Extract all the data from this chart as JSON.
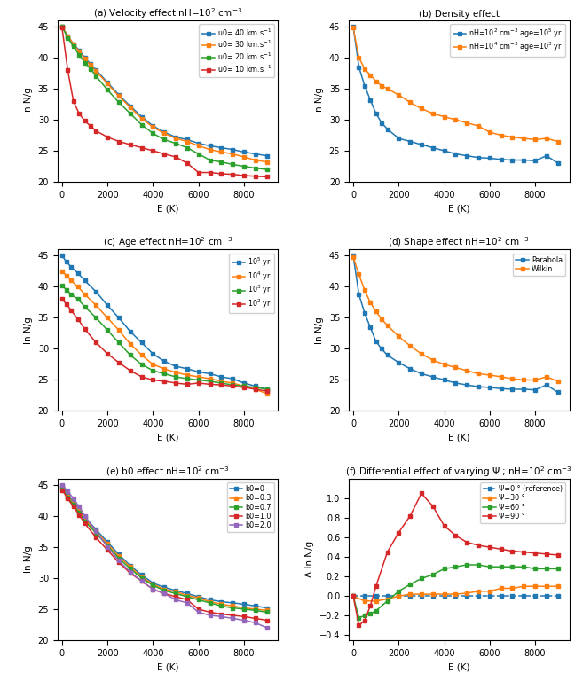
{
  "panel_a": {
    "title": "(a) Velocity effect nH=10$^2$ cm$^{-3}$",
    "xlabel": "E (K)",
    "ylabel": "ln N/g",
    "ylim": [
      20,
      46
    ],
    "xlim": [
      -200,
      9500
    ],
    "yticks": [
      20,
      25,
      30,
      35,
      40,
      45
    ],
    "xticks": [
      0,
      2000,
      4000,
      6000,
      8000
    ],
    "series": [
      {
        "label": "u0= 40 km.s$^{-1}$",
        "color": "#1f77b4",
        "x": [
          0,
          250,
          500,
          750,
          1000,
          1250,
          1500,
          2000,
          2500,
          3000,
          3500,
          4000,
          4500,
          5000,
          5500,
          6000,
          6500,
          7000,
          7500,
          8000,
          8500,
          9000
        ],
        "y": [
          45.0,
          43.5,
          42.2,
          41.2,
          40.0,
          39.0,
          38.0,
          36.0,
          34.0,
          32.2,
          30.5,
          29.0,
          28.0,
          27.2,
          26.8,
          26.2,
          25.8,
          25.5,
          25.2,
          24.8,
          24.5,
          24.2
        ]
      },
      {
        "label": "u0= 30 km.s$^{-1}$",
        "color": "#ff7f0e",
        "x": [
          0,
          250,
          500,
          750,
          1000,
          1250,
          1500,
          2000,
          2500,
          3000,
          3500,
          4000,
          4500,
          5000,
          5500,
          6000,
          6500,
          7000,
          7500,
          8000,
          8500,
          9000
        ],
        "y": [
          45.0,
          43.5,
          42.2,
          41.0,
          39.8,
          38.8,
          37.8,
          35.8,
          33.8,
          32.0,
          30.2,
          28.8,
          27.8,
          27.0,
          26.5,
          25.8,
          25.2,
          24.8,
          24.5,
          24.0,
          23.5,
          23.2
        ]
      },
      {
        "label": "u0= 20 km.s$^{-1}$",
        "color": "#2ca02c",
        "x": [
          0,
          250,
          500,
          750,
          1000,
          1250,
          1500,
          2000,
          2500,
          3000,
          3500,
          4000,
          4500,
          5000,
          5500,
          6000,
          6500,
          7000,
          7500,
          8000,
          8500,
          9000
        ],
        "y": [
          45.0,
          43.2,
          41.8,
          40.5,
          39.2,
          38.2,
          37.0,
          34.8,
          32.8,
          31.0,
          29.2,
          27.8,
          26.8,
          26.2,
          25.5,
          24.5,
          23.5,
          23.2,
          22.8,
          22.5,
          22.2,
          22.0
        ]
      },
      {
        "label": "u0= 10 km.s$^{-1}$",
        "color": "#d62728",
        "x": [
          0,
          250,
          500,
          750,
          1000,
          1250,
          1500,
          2000,
          2500,
          3000,
          3500,
          4000,
          4500,
          5000,
          5500,
          6000,
          6500,
          7000,
          7500,
          8000,
          8500,
          9000
        ],
        "y": [
          44.8,
          38.0,
          33.0,
          31.0,
          29.8,
          29.0,
          28.2,
          27.2,
          26.5,
          26.0,
          25.5,
          25.0,
          24.5,
          24.0,
          23.0,
          21.5,
          21.5,
          21.3,
          21.2,
          21.0,
          20.9,
          20.8
        ]
      }
    ]
  },
  "panel_b": {
    "title": "(b) Density effect",
    "xlabel": "E (K)",
    "ylabel": "ln N/g",
    "ylim": [
      20,
      46
    ],
    "xlim": [
      -200,
      9500
    ],
    "yticks": [
      20,
      25,
      30,
      35,
      40,
      45
    ],
    "xticks": [
      0,
      2000,
      4000,
      6000,
      8000
    ],
    "series": [
      {
        "label": "nH=10$^2$ cm$^{-3}$ age=10$^5$ yr",
        "color": "#1f77b4",
        "x": [
          0,
          250,
          500,
          750,
          1000,
          1250,
          1500,
          2000,
          2500,
          3000,
          3500,
          4000,
          4500,
          5000,
          5500,
          6000,
          6500,
          7000,
          7500,
          8000,
          8500,
          9000
        ],
        "y": [
          45.0,
          38.5,
          35.5,
          33.2,
          31.0,
          29.5,
          28.5,
          27.0,
          26.5,
          26.0,
          25.5,
          25.0,
          24.5,
          24.2,
          23.9,
          23.8,
          23.6,
          23.5,
          23.5,
          23.4,
          24.2,
          23.0
        ]
      },
      {
        "label": "nH=10$^4$ cm$^{-3}$ age=10$^3$ yr",
        "color": "#ff7f0e",
        "x": [
          0,
          250,
          500,
          750,
          1000,
          1250,
          1500,
          2000,
          2500,
          3000,
          3500,
          4000,
          4500,
          5000,
          5500,
          6000,
          6500,
          7000,
          7500,
          8000,
          8500,
          9000
        ],
        "y": [
          44.8,
          40.0,
          38.2,
          37.2,
          36.2,
          35.5,
          35.0,
          34.0,
          32.8,
          31.8,
          31.0,
          30.5,
          30.0,
          29.5,
          29.0,
          28.0,
          27.5,
          27.2,
          27.0,
          26.8,
          27.0,
          26.5
        ]
      }
    ]
  },
  "panel_c": {
    "title": "(c) Age effect nH=10$^2$ cm$^{-3}$",
    "xlabel": "E (K)",
    "ylabel": "ln N/g",
    "ylim": [
      20,
      46
    ],
    "xlim": [
      -200,
      9500
    ],
    "yticks": [
      20,
      25,
      30,
      35,
      40,
      45
    ],
    "xticks": [
      0,
      2000,
      4000,
      6000,
      8000
    ],
    "series": [
      {
        "label": "10$^5$ yr",
        "color": "#1f77b4",
        "x": [
          0,
          200,
          400,
          700,
          1000,
          1500,
          2000,
          2500,
          3000,
          3500,
          4000,
          4500,
          5000,
          5500,
          6000,
          6500,
          7000,
          7500,
          8000,
          8500,
          9000
        ],
        "y": [
          45.0,
          44.0,
          43.2,
          42.2,
          41.0,
          39.2,
          37.0,
          35.0,
          32.8,
          31.0,
          29.2,
          28.0,
          27.2,
          26.8,
          26.3,
          26.0,
          25.5,
          25.2,
          24.5,
          24.0,
          23.5
        ]
      },
      {
        "label": "10$^4$ yr",
        "color": "#ff7f0e",
        "x": [
          0,
          200,
          400,
          700,
          1000,
          1500,
          2000,
          2500,
          3000,
          3500,
          4000,
          4500,
          5000,
          5500,
          6000,
          6500,
          7000,
          7500,
          8000,
          8500,
          9000
        ],
        "y": [
          42.5,
          41.8,
          41.0,
          40.0,
          38.8,
          37.0,
          35.0,
          33.0,
          30.8,
          29.0,
          27.5,
          26.8,
          26.2,
          25.8,
          25.5,
          25.2,
          24.8,
          24.5,
          24.0,
          23.5,
          22.8
        ]
      },
      {
        "label": "10$^3$ yr",
        "color": "#2ca02c",
        "x": [
          0,
          200,
          400,
          700,
          1000,
          1500,
          2000,
          2500,
          3000,
          3500,
          4000,
          4500,
          5000,
          5500,
          6000,
          6500,
          7000,
          7500,
          8000,
          8500,
          9000
        ],
        "y": [
          40.2,
          39.5,
          38.8,
          38.0,
          36.8,
          35.0,
          33.0,
          31.0,
          29.0,
          27.5,
          26.5,
          26.0,
          25.5,
          25.2,
          25.0,
          24.8,
          24.5,
          24.2,
          24.0,
          23.8,
          23.5
        ]
      },
      {
        "label": "10$^2$ yr",
        "color": "#d62728",
        "x": [
          0,
          200,
          400,
          700,
          1000,
          1500,
          2000,
          2500,
          3000,
          3500,
          4000,
          4500,
          5000,
          5500,
          6000,
          6500,
          7000,
          7500,
          8000,
          8500,
          9000
        ],
        "y": [
          38.0,
          37.2,
          36.2,
          34.8,
          33.2,
          31.0,
          29.2,
          27.8,
          26.5,
          25.5,
          25.0,
          24.8,
          24.5,
          24.3,
          24.5,
          24.3,
          24.2,
          24.0,
          23.8,
          23.5,
          23.2
        ]
      }
    ]
  },
  "panel_d": {
    "title": "(d) Shape effect nH=10$^2$ cm$^{-3}$",
    "xlabel": "E (K)",
    "ylabel": "ln N/g",
    "ylim": [
      20,
      46
    ],
    "xlim": [
      -200,
      9500
    ],
    "yticks": [
      20,
      25,
      30,
      35,
      40,
      45
    ],
    "xticks": [
      0,
      2000,
      4000,
      6000,
      8000
    ],
    "series": [
      {
        "label": "Parabola",
        "color": "#1f77b4",
        "x": [
          0,
          250,
          500,
          750,
          1000,
          1250,
          1500,
          2000,
          2500,
          3000,
          3500,
          4000,
          4500,
          5000,
          5500,
          6000,
          6500,
          7000,
          7500,
          8000,
          8500,
          9000
        ],
        "y": [
          45.0,
          38.8,
          35.8,
          33.5,
          31.2,
          30.0,
          29.0,
          27.8,
          26.8,
          26.0,
          25.5,
          25.0,
          24.5,
          24.2,
          23.9,
          23.8,
          23.6,
          23.5,
          23.5,
          23.4,
          24.2,
          23.0
        ]
      },
      {
        "label": "Wilkin",
        "color": "#ff7f0e",
        "x": [
          0,
          250,
          500,
          750,
          1000,
          1250,
          1500,
          2000,
          2500,
          3000,
          3500,
          4000,
          4500,
          5000,
          5500,
          6000,
          6500,
          7000,
          7500,
          8000,
          8500,
          9000
        ],
        "y": [
          44.8,
          42.0,
          39.5,
          37.5,
          36.0,
          34.8,
          33.8,
          32.0,
          30.5,
          29.2,
          28.2,
          27.5,
          27.0,
          26.5,
          26.0,
          25.8,
          25.5,
          25.2,
          25.0,
          25.0,
          25.5,
          24.8
        ]
      }
    ]
  },
  "panel_e": {
    "title": "(e) b0 effect nH=10$^2$ cm$^{-3}$",
    "xlabel": "E (K)",
    "ylabel": "ln N/g",
    "ylim": [
      20,
      46
    ],
    "xlim": [
      -200,
      9500
    ],
    "yticks": [
      20,
      25,
      30,
      35,
      40,
      45
    ],
    "xticks": [
      0,
      2000,
      4000,
      6000,
      8000
    ],
    "series": [
      {
        "label": "b0=0",
        "color": "#1f77b4",
        "x": [
          0,
          250,
          500,
          750,
          1000,
          1500,
          2000,
          2500,
          3000,
          3500,
          4000,
          4500,
          5000,
          5500,
          6000,
          6500,
          7000,
          7500,
          8000,
          8500,
          9000
        ],
        "y": [
          44.8,
          43.5,
          42.2,
          41.0,
          39.8,
          37.8,
          35.8,
          33.8,
          32.0,
          30.5,
          29.2,
          28.5,
          28.0,
          27.5,
          27.0,
          26.5,
          26.2,
          26.0,
          25.8,
          25.5,
          25.2
        ]
      },
      {
        "label": "b0=0.3",
        "color": "#ff7f0e",
        "x": [
          0,
          250,
          500,
          750,
          1000,
          1500,
          2000,
          2500,
          3000,
          3500,
          4000,
          4500,
          5000,
          5500,
          6000,
          6500,
          7000,
          7500,
          8000,
          8500,
          9000
        ],
        "y": [
          44.5,
          43.2,
          42.0,
          40.8,
          39.5,
          37.5,
          35.5,
          33.5,
          31.8,
          30.2,
          29.0,
          28.2,
          27.8,
          27.2,
          26.8,
          26.2,
          25.8,
          25.5,
          25.2,
          25.0,
          24.8
        ]
      },
      {
        "label": "b0=0.7",
        "color": "#2ca02c",
        "x": [
          0,
          250,
          500,
          750,
          1000,
          1500,
          2000,
          2500,
          3000,
          3500,
          4000,
          4500,
          5000,
          5500,
          6000,
          6500,
          7000,
          7500,
          8000,
          8500,
          9000
        ],
        "y": [
          44.5,
          43.0,
          41.8,
          40.5,
          39.2,
          37.2,
          35.2,
          33.2,
          31.5,
          30.0,
          28.8,
          28.0,
          27.5,
          27.0,
          26.5,
          26.0,
          25.5,
          25.2,
          25.0,
          24.8,
          24.5
        ]
      },
      {
        "label": "b0=1.0",
        "color": "#d62728",
        "x": [
          0,
          250,
          500,
          750,
          1000,
          1500,
          2000,
          2500,
          3000,
          3500,
          4000,
          4500,
          5000,
          5500,
          6000,
          6500,
          7000,
          7500,
          8000,
          8500,
          9000
        ],
        "y": [
          44.2,
          42.8,
          41.5,
          40.2,
          38.8,
          36.5,
          34.5,
          32.5,
          30.8,
          29.5,
          28.2,
          27.5,
          27.0,
          26.5,
          25.0,
          24.5,
          24.2,
          24.0,
          23.8,
          23.5,
          23.2
        ]
      },
      {
        "label": "b0=2.0",
        "color": "#9467bd",
        "x": [
          0,
          250,
          500,
          750,
          1000,
          1500,
          2000,
          2500,
          3000,
          3500,
          4000,
          4500,
          5000,
          5500,
          6000,
          6500,
          7000,
          7500,
          8000,
          8500,
          9000
        ],
        "y": [
          45.0,
          44.0,
          42.8,
          41.5,
          40.0,
          37.5,
          35.0,
          32.8,
          31.0,
          29.5,
          28.2,
          27.5,
          26.5,
          26.0,
          24.5,
          24.0,
          23.8,
          23.5,
          23.2,
          22.8,
          22.0
        ]
      }
    ]
  },
  "panel_f": {
    "title": "(f) Differential effect of varying Ψ ; nH=10$^2$ cm$^{-3}$",
    "xlabel": "E (K)",
    "ylabel": "Δ ln N/g",
    "ylim": [
      -0.45,
      1.2
    ],
    "xlim": [
      -200,
      9500
    ],
    "yticks": [
      -0.4,
      -0.2,
      0.0,
      0.2,
      0.4,
      0.6,
      0.8,
      1.0
    ],
    "xticks": [
      0,
      2000,
      4000,
      6000,
      8000
    ],
    "series": [
      {
        "label": "Ψ=0 ° (reference)",
        "color": "#1f77b4",
        "linestyle": "--",
        "x": [
          0,
          500,
          1000,
          1500,
          2000,
          2500,
          3000,
          3500,
          4000,
          4500,
          5000,
          5500,
          6000,
          6500,
          7000,
          7500,
          8000,
          8500,
          9000
        ],
        "y": [
          0.0,
          0.0,
          0.0,
          0.0,
          0.0,
          0.0,
          0.0,
          0.0,
          0.0,
          0.0,
          0.0,
          0.0,
          0.0,
          0.0,
          0.0,
          0.0,
          0.0,
          0.0,
          0.0
        ]
      },
      {
        "label": "Ψ=30 °",
        "color": "#ff7f0e",
        "linestyle": "-",
        "x": [
          0,
          500,
          1000,
          1500,
          2000,
          2500,
          3000,
          3500,
          4000,
          4500,
          5000,
          5500,
          6000,
          6500,
          7000,
          7500,
          8000,
          8500,
          9000
        ],
        "y": [
          0.0,
          -0.05,
          -0.05,
          -0.03,
          0.0,
          0.02,
          0.02,
          0.02,
          0.02,
          0.02,
          0.03,
          0.05,
          0.05,
          0.08,
          0.08,
          0.1,
          0.1,
          0.1,
          0.1
        ]
      },
      {
        "label": "Ψ=60 °",
        "color": "#2ca02c",
        "linestyle": "-",
        "x": [
          0,
          250,
          500,
          750,
          1000,
          1500,
          2000,
          2500,
          3000,
          3500,
          4000,
          4500,
          5000,
          5500,
          6000,
          6500,
          7000,
          7500,
          8000,
          8500,
          9000
        ],
        "y": [
          0.0,
          -0.22,
          -0.2,
          -0.18,
          -0.15,
          -0.05,
          0.05,
          0.12,
          0.18,
          0.22,
          0.28,
          0.3,
          0.32,
          0.32,
          0.3,
          0.3,
          0.3,
          0.3,
          0.28,
          0.28,
          0.28
        ]
      },
      {
        "label": "Ψ=90 °",
        "color": "#d62728",
        "linestyle": "-",
        "x": [
          0,
          250,
          500,
          750,
          1000,
          1500,
          2000,
          2500,
          3000,
          3500,
          4000,
          4500,
          5000,
          5500,
          6000,
          6500,
          7000,
          7500,
          8000,
          8500,
          9000
        ],
        "y": [
          0.0,
          -0.3,
          -0.25,
          -0.1,
          0.1,
          0.45,
          0.65,
          0.82,
          1.05,
          0.92,
          0.72,
          0.62,
          0.55,
          0.52,
          0.5,
          0.48,
          0.46,
          0.45,
          0.44,
          0.43,
          0.42
        ]
      }
    ]
  }
}
